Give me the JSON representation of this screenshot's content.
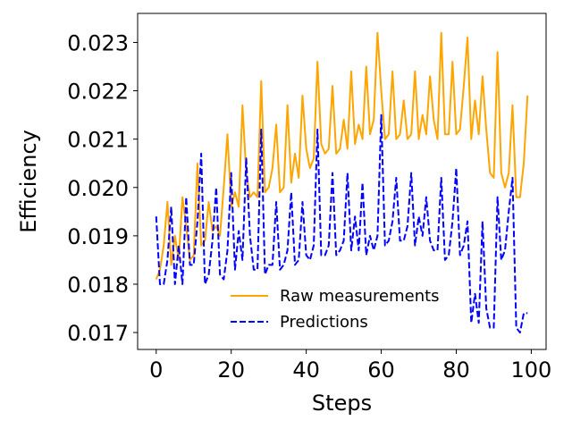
{
  "chart_data": {
    "type": "line",
    "title": "",
    "xlabel": "Steps",
    "ylabel": "Efficiency",
    "xlim": [
      -4.95,
      103.95
    ],
    "ylim": [
      0.01665,
      0.0236
    ],
    "xticks": [
      0,
      20,
      40,
      60,
      80,
      100
    ],
    "yticks": [
      0.017,
      0.018,
      0.019,
      0.02,
      0.021,
      0.022,
      0.023
    ],
    "xtick_labels": [
      "0",
      "20",
      "40",
      "60",
      "80",
      "100"
    ],
    "ytick_labels": [
      "0.017",
      "0.018",
      "0.019",
      "0.020",
      "0.021",
      "0.022",
      "0.023"
    ],
    "grid": false,
    "legend_position": "lower-center",
    "x": [
      0,
      1,
      2,
      3,
      4,
      5,
      6,
      7,
      8,
      9,
      10,
      11,
      12,
      13,
      14,
      15,
      16,
      17,
      18,
      19,
      20,
      21,
      22,
      23,
      24,
      25,
      26,
      27,
      28,
      29,
      30,
      31,
      32,
      33,
      34,
      35,
      36,
      37,
      38,
      39,
      40,
      41,
      42,
      43,
      44,
      45,
      46,
      47,
      48,
      49,
      50,
      51,
      52,
      53,
      54,
      55,
      56,
      57,
      58,
      59,
      60,
      61,
      62,
      63,
      64,
      65,
      66,
      67,
      68,
      69,
      70,
      71,
      72,
      73,
      74,
      75,
      76,
      77,
      78,
      79,
      80,
      81,
      82,
      83,
      84,
      85,
      86,
      87,
      88,
      89,
      90,
      91,
      92,
      93,
      94,
      95,
      96,
      97,
      98,
      99
    ],
    "series": [
      {
        "name": "Raw measurements",
        "color": "#ffa500",
        "style": "solid",
        "values": [
          0.0181,
          0.0183,
          0.0188,
          0.0197,
          0.0184,
          0.019,
          0.0185,
          0.0198,
          0.0192,
          0.0185,
          0.0186,
          0.0205,
          0.0188,
          0.0189,
          0.0197,
          0.0191,
          0.0192,
          0.019,
          0.02,
          0.0211,
          0.0196,
          0.0199,
          0.0196,
          0.0217,
          0.0203,
          0.0198,
          0.0199,
          0.0198,
          0.0222,
          0.0199,
          0.02,
          0.0204,
          0.0213,
          0.0199,
          0.02,
          0.0217,
          0.0201,
          0.0207,
          0.0202,
          0.0219,
          0.0208,
          0.0204,
          0.0206,
          0.0226,
          0.0209,
          0.0207,
          0.0208,
          0.0221,
          0.0207,
          0.0208,
          0.0214,
          0.0208,
          0.0224,
          0.0209,
          0.0213,
          0.021,
          0.0225,
          0.0211,
          0.0214,
          0.0232,
          0.022,
          0.021,
          0.0211,
          0.0224,
          0.021,
          0.0211,
          0.0218,
          0.021,
          0.0211,
          0.0224,
          0.021,
          0.0215,
          0.0211,
          0.0223,
          0.0214,
          0.021,
          0.0232,
          0.0211,
          0.0211,
          0.0226,
          0.0211,
          0.0212,
          0.0221,
          0.0231,
          0.021,
          0.0218,
          0.0211,
          0.0223,
          0.0212,
          0.0203,
          0.0202,
          0.0228,
          0.0203,
          0.02,
          0.0203,
          0.0217,
          0.0198,
          0.0198,
          0.0205,
          0.0219
        ]
      },
      {
        "name": "Predictions",
        "color": "#0000ff",
        "style": "dashed",
        "values": [
          0.0194,
          0.018,
          0.018,
          0.0185,
          0.0196,
          0.018,
          0.0188,
          0.018,
          0.0198,
          0.0184,
          0.0184,
          0.0193,
          0.0207,
          0.018,
          0.0182,
          0.0189,
          0.02,
          0.0182,
          0.0181,
          0.0187,
          0.0203,
          0.0183,
          0.0191,
          0.0185,
          0.0206,
          0.019,
          0.0183,
          0.0183,
          0.0212,
          0.0182,
          0.0184,
          0.0184,
          0.0197,
          0.0183,
          0.0184,
          0.0187,
          0.0199,
          0.0184,
          0.0185,
          0.0197,
          0.0186,
          0.0185,
          0.0188,
          0.0212,
          0.0186,
          0.0186,
          0.0188,
          0.0203,
          0.0186,
          0.0187,
          0.0189,
          0.0203,
          0.0187,
          0.0194,
          0.0187,
          0.0201,
          0.0186,
          0.019,
          0.0187,
          0.019,
          0.0215,
          0.0188,
          0.0189,
          0.0193,
          0.0202,
          0.0189,
          0.0189,
          0.0192,
          0.0203,
          0.0188,
          0.0194,
          0.019,
          0.0198,
          0.0189,
          0.0187,
          0.0187,
          0.0202,
          0.0185,
          0.0186,
          0.0193,
          0.0204,
          0.0186,
          0.0188,
          0.0193,
          0.0172,
          0.0178,
          0.0172,
          0.0193,
          0.0175,
          0.0171,
          0.0171,
          0.0198,
          0.0185,
          0.0187,
          0.0195,
          0.0202,
          0.0171,
          0.017,
          0.0174,
          0.0174
        ]
      }
    ]
  }
}
